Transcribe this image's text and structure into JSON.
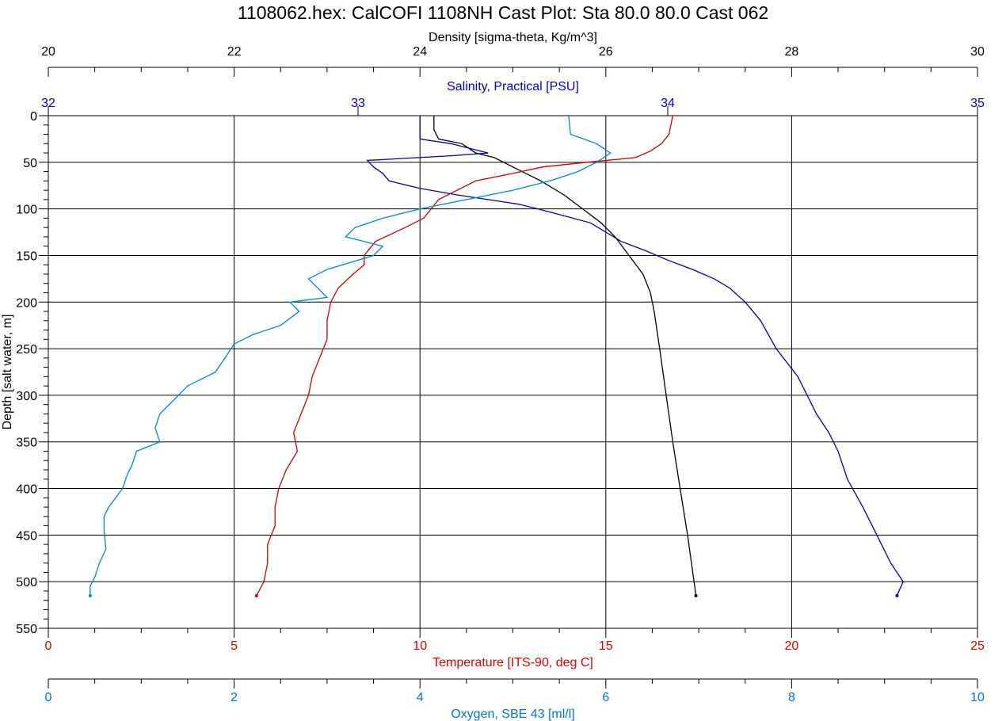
{
  "chart_data": {
    "type": "line",
    "title": "1108062.hex: CalCOFI 1108NH Cast Plot: Sta 80.0 80.0 Cast 062",
    "y_axis": {
      "label": "Depth [salt water, m]",
      "range": [
        0,
        550
      ],
      "ticks": [
        "0",
        "50",
        "100",
        "150",
        "200",
        "250",
        "300",
        "350",
        "400",
        "450",
        "500",
        "550"
      ]
    },
    "axes": [
      {
        "key": "density",
        "label": "Density [sigma-theta, Kg/m^3]",
        "color": "#000000",
        "range": [
          20,
          30
        ],
        "ticks": [
          "20",
          "22",
          "24",
          "26",
          "28",
          "30"
        ]
      },
      {
        "key": "salinity",
        "label": "Salinity, Practical [PSU]",
        "color": "#0000cc",
        "range": [
          32,
          35
        ],
        "ticks": [
          "32",
          "33",
          "34",
          "35"
        ]
      },
      {
        "key": "temperature",
        "label": "Temperature [ITS-90, deg C]",
        "color": "#dd0000",
        "range": [
          0,
          25
        ],
        "ticks": [
          "0",
          "5",
          "10",
          "15",
          "20",
          "25"
        ]
      },
      {
        "key": "oxygen",
        "label": "Oxygen, SBE 43 [ml/l]",
        "color": "#0077cc",
        "range": [
          0,
          10
        ],
        "ticks": [
          "0",
          "2",
          "4",
          "6",
          "8",
          "10"
        ]
      }
    ],
    "grid": true,
    "series": [
      {
        "axis": "density",
        "color": "#000000",
        "points": [
          [
            24.15,
            0
          ],
          [
            24.15,
            15
          ],
          [
            24.2,
            25
          ],
          [
            24.45,
            30
          ],
          [
            24.6,
            40
          ],
          [
            24.8,
            45
          ],
          [
            25.0,
            55
          ],
          [
            25.3,
            70
          ],
          [
            25.55,
            85
          ],
          [
            25.75,
            100
          ],
          [
            25.95,
            115
          ],
          [
            26.1,
            130
          ],
          [
            26.25,
            150
          ],
          [
            26.4,
            170
          ],
          [
            26.48,
            190
          ],
          [
            26.52,
            210
          ],
          [
            26.58,
            250
          ],
          [
            26.65,
            300
          ],
          [
            26.72,
            350
          ],
          [
            26.8,
            400
          ],
          [
            26.88,
            450
          ],
          [
            26.95,
            500
          ],
          [
            26.97,
            515
          ]
        ]
      },
      {
        "axis": "salinity",
        "color": "#0000aa",
        "points": [
          [
            33.2,
            0
          ],
          [
            33.2,
            25
          ],
          [
            33.3,
            30
          ],
          [
            33.42,
            40
          ],
          [
            33.3,
            43
          ],
          [
            33.03,
            48
          ],
          [
            33.05,
            55
          ],
          [
            33.08,
            62
          ],
          [
            33.1,
            70
          ],
          [
            33.2,
            78
          ],
          [
            33.32,
            85
          ],
          [
            33.42,
            90
          ],
          [
            33.52,
            95
          ],
          [
            33.58,
            100
          ],
          [
            33.65,
            106
          ],
          [
            33.75,
            115
          ],
          [
            33.8,
            125
          ],
          [
            33.85,
            135
          ],
          [
            33.93,
            145
          ],
          [
            34.0,
            155
          ],
          [
            34.08,
            165
          ],
          [
            34.15,
            175
          ],
          [
            34.2,
            185
          ],
          [
            34.25,
            200
          ],
          [
            34.3,
            220
          ],
          [
            34.35,
            250
          ],
          [
            34.42,
            280
          ],
          [
            34.45,
            300
          ],
          [
            34.48,
            320
          ],
          [
            34.52,
            340
          ],
          [
            34.55,
            360
          ],
          [
            34.58,
            390
          ],
          [
            34.63,
            420
          ],
          [
            34.66,
            440
          ],
          [
            34.72,
            480
          ],
          [
            34.76,
            500
          ],
          [
            34.74,
            515
          ]
        ]
      },
      {
        "axis": "temperature",
        "color": "#cc0000",
        "points": [
          [
            16.8,
            0
          ],
          [
            16.7,
            20
          ],
          [
            16.5,
            30
          ],
          [
            16.2,
            38
          ],
          [
            15.8,
            45
          ],
          [
            14.5,
            50
          ],
          [
            13.3,
            55
          ],
          [
            12.5,
            62
          ],
          [
            11.5,
            70
          ],
          [
            11.0,
            80
          ],
          [
            10.5,
            90
          ],
          [
            10.3,
            100
          ],
          [
            10.1,
            110
          ],
          [
            9.6,
            120
          ],
          [
            8.8,
            135
          ],
          [
            8.5,
            150
          ],
          [
            8.5,
            160
          ],
          [
            8.2,
            170
          ],
          [
            7.8,
            185
          ],
          [
            7.6,
            200
          ],
          [
            7.5,
            220
          ],
          [
            7.5,
            240
          ],
          [
            7.3,
            260
          ],
          [
            7.1,
            280
          ],
          [
            7.0,
            300
          ],
          [
            6.8,
            320
          ],
          [
            6.6,
            340
          ],
          [
            6.7,
            360
          ],
          [
            6.4,
            380
          ],
          [
            6.2,
            400
          ],
          [
            6.1,
            420
          ],
          [
            6.1,
            440
          ],
          [
            5.9,
            460
          ],
          [
            5.9,
            480
          ],
          [
            5.8,
            500
          ],
          [
            5.6,
            515
          ]
        ]
      },
      {
        "axis": "oxygen",
        "color": "#0088cc",
        "points": [
          [
            5.6,
            0
          ],
          [
            5.62,
            20
          ],
          [
            5.9,
            30
          ],
          [
            6.05,
            40
          ],
          [
            5.9,
            50
          ],
          [
            5.7,
            60
          ],
          [
            5.4,
            70
          ],
          [
            5.0,
            80
          ],
          [
            4.5,
            90
          ],
          [
            4.0,
            100
          ],
          [
            3.6,
            110
          ],
          [
            3.3,
            120
          ],
          [
            3.2,
            130
          ],
          [
            3.6,
            140
          ],
          [
            3.5,
            150
          ],
          [
            3.0,
            165
          ],
          [
            2.8,
            175
          ],
          [
            2.9,
            185
          ],
          [
            3.0,
            195
          ],
          [
            2.6,
            200
          ],
          [
            2.7,
            210
          ],
          [
            2.5,
            225
          ],
          [
            2.2,
            235
          ],
          [
            2.0,
            245
          ],
          [
            1.9,
            260
          ],
          [
            1.8,
            275
          ],
          [
            1.5,
            290
          ],
          [
            1.35,
            305
          ],
          [
            1.2,
            320
          ],
          [
            1.15,
            335
          ],
          [
            1.2,
            350
          ],
          [
            0.95,
            360
          ],
          [
            0.9,
            375
          ],
          [
            0.85,
            385
          ],
          [
            0.8,
            400
          ],
          [
            0.65,
            420
          ],
          [
            0.6,
            430
          ],
          [
            0.6,
            445
          ],
          [
            0.62,
            465
          ],
          [
            0.55,
            480
          ],
          [
            0.5,
            495
          ],
          [
            0.45,
            505
          ],
          [
            0.45,
            515
          ]
        ]
      }
    ]
  }
}
